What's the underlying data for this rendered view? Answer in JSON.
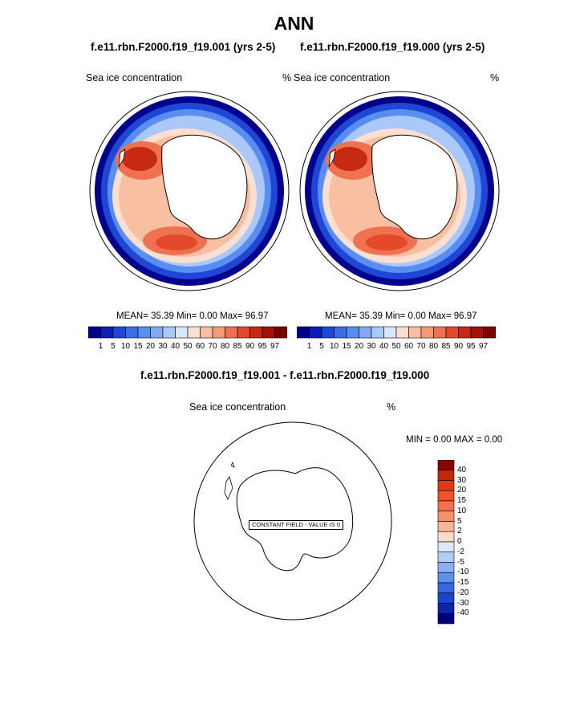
{
  "title": "ANN",
  "panels": [
    {
      "title": "f.e11.rbn.F2000.f19_f19.001 (yrs 2-5)",
      "left_label": "Sea ice concentration",
      "right_label": "%",
      "stats": "MEAN=  35.39  Min=   0.00  Max=  96.97"
    },
    {
      "title": "f.e11.rbn.F2000.f19_f19.000 (yrs 2-5)",
      "left_label": "Sea ice concentration",
      "right_label": "%",
      "stats": "MEAN=  35.39  Min=   0.00  Max=  96.97"
    }
  ],
  "colorbar": {
    "labels": [
      "1",
      "5",
      "10",
      "15",
      "20",
      "30",
      "40",
      "50",
      "60",
      "70",
      "80",
      "85",
      "90",
      "95",
      "97"
    ],
    "colors": [
      "#00008c",
      "#0a1fb4",
      "#1f47d6",
      "#3b6ee6",
      "#5a8df0",
      "#82aaf4",
      "#aac8f8",
      "#d6e8fa",
      "#fbe0d2",
      "#f9bfa3",
      "#f59a76",
      "#ef7150",
      "#e34a2c",
      "#c62a12",
      "#a01208",
      "#7a0000"
    ]
  },
  "diff": {
    "title": "f.e11.rbn.F2000.f19_f19.001 - f.e11.rbn.F2000.f19_f19.000",
    "left_label": "Sea ice concentration",
    "right_label": "%",
    "minmax": "MIN =   0.00 MAX =   0.00",
    "constant_note": "CONSTANT FIELD - VALUE IS 0",
    "colorbar_labels": [
      "40",
      "30",
      "20",
      "15",
      "10",
      "5",
      "2",
      "0",
      "-2",
      "-5",
      "-10",
      "-15",
      "-20",
      "-30",
      "-40"
    ],
    "colorbar_colors": [
      "#8b0000",
      "#c0280e",
      "#e03a14",
      "#f0522a",
      "#f4704a",
      "#f7916c",
      "#f9b596",
      "#fbdcc8",
      "#dce9fb",
      "#b4cdf8",
      "#8aaff4",
      "#5f8ff0",
      "#3768e4",
      "#1a45cc",
      "#0c26a8",
      "#00007a"
    ]
  }
}
